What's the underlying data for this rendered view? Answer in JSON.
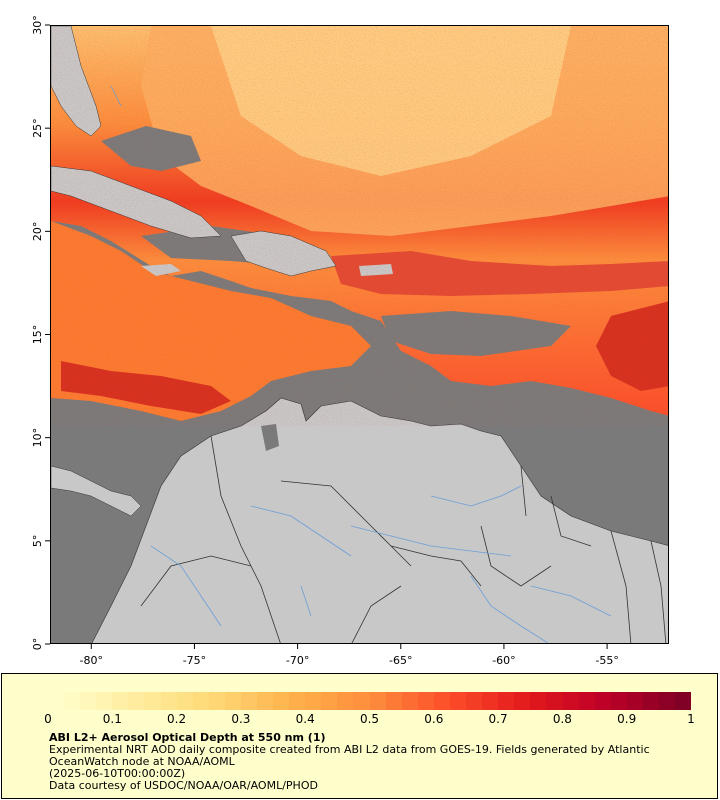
{
  "map": {
    "lon_range": [
      -82,
      -52
    ],
    "lat_range": [
      0,
      30
    ],
    "x_ticks": [
      "-80°",
      "-75°",
      "-70°",
      "-65°",
      "-60°",
      "-55°"
    ],
    "x_tick_values": [
      -80,
      -75,
      -70,
      -65,
      -60,
      -55
    ],
    "y_ticks": [
      "0°",
      "5°",
      "10°",
      "15°",
      "20°",
      "25°",
      "30°"
    ],
    "y_tick_values": [
      0,
      5,
      10,
      15,
      20,
      25,
      30
    ],
    "colors": {
      "ocean_nodata": "#7a7a7a",
      "land": "#c8c8c8",
      "rivers": "#6a9fd6",
      "borders": "#333333"
    }
  },
  "legend": {
    "scale_labels": [
      "0",
      "0.1",
      "0.2",
      "0.3",
      "0.4",
      "0.5",
      "0.6",
      "0.7",
      "0.8",
      "0.9",
      "1"
    ],
    "scale_values": [
      0,
      0.1,
      0.2,
      0.3,
      0.4,
      0.5,
      0.6,
      0.7,
      0.8,
      0.9,
      1
    ],
    "title": "ABI L2+ Aerosol Optical Depth at 550 nm (1)",
    "description": "Experimental NRT AOD daily composite created from ABI L2 data from GOES-19. Fields generated by Atlantic OceanWatch node at NOAA/AOML",
    "date": "(2025-06-10T00:00:00Z)",
    "credit": "Data courtesy of USDOC/NOAA/OAR/AOML/PHOD",
    "colormap": [
      "#ffffcc",
      "#ffeda0",
      "#fed976",
      "#feb24c",
      "#fd8d3c",
      "#fc4e2a",
      "#e31a1c",
      "#bd0026",
      "#800026"
    ]
  }
}
